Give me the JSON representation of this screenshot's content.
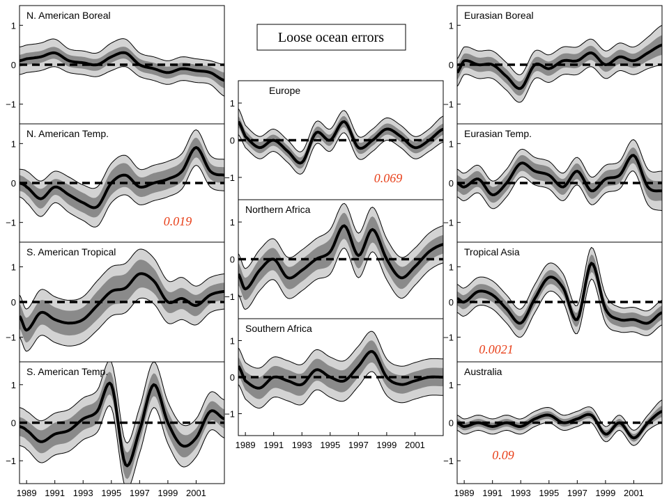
{
  "figure_title": "Loose ocean errors",
  "colors": {
    "outer_band": "#d3d3d3",
    "inner_band": "#8a8a8a",
    "mean_line": "#000000",
    "annotation": "#e8401a"
  },
  "chart_data": [
    {
      "type": "line",
      "title": "N. American Boreal",
      "annotation": "",
      "x": [
        1988.5,
        1989,
        1990,
        1991,
        1992,
        1993,
        1994,
        1995,
        1996,
        1997,
        1998,
        1999,
        2000,
        2001,
        2002,
        2003
      ],
      "series": [
        {
          "values": [
            0.1,
            0.15,
            0.2,
            0.3,
            0.1,
            0.05,
            0.0,
            0.2,
            0.3,
            0.0,
            -0.1,
            -0.2,
            -0.1,
            -0.15,
            -0.2,
            -0.4
          ]
        }
      ],
      "band_outer": [
        0.35,
        0.35,
        0.35,
        0.35,
        0.3,
        0.3,
        0.3,
        0.35,
        0.35,
        0.3,
        0.3,
        0.3,
        0.3,
        0.3,
        0.3,
        0.4
      ],
      "band_inner": [
        0.15,
        0.15,
        0.15,
        0.15,
        0.15,
        0.15,
        0.15,
        0.15,
        0.15,
        0.15,
        0.15,
        0.15,
        0.15,
        0.15,
        0.15,
        0.2
      ],
      "ylim": [
        -1.5,
        1.5
      ],
      "yticks": [
        -1,
        0,
        1
      ],
      "xticks": [],
      "grid": false
    },
    {
      "type": "line",
      "title": "N. American Temp.",
      "annotation": "0.019",
      "x": [
        1988.5,
        1989,
        1990,
        1991,
        1992,
        1993,
        1994,
        1995,
        1996,
        1997,
        1998,
        1999,
        2000,
        2001,
        2002,
        2003
      ],
      "series": [
        {
          "values": [
            0.0,
            -0.1,
            -0.4,
            -0.1,
            -0.3,
            -0.5,
            -0.6,
            0.0,
            0.2,
            -0.1,
            0.0,
            0.1,
            0.3,
            0.9,
            0.3,
            0.2
          ]
        }
      ],
      "band_outer": [
        0.35,
        0.4,
        0.45,
        0.4,
        0.45,
        0.45,
        0.5,
        0.5,
        0.5,
        0.45,
        0.45,
        0.45,
        0.45,
        0.45,
        0.4,
        0.4
      ],
      "band_inner": [
        0.2,
        0.2,
        0.25,
        0.2,
        0.25,
        0.25,
        0.25,
        0.3,
        0.3,
        0.25,
        0.25,
        0.25,
        0.25,
        0.25,
        0.2,
        0.2
      ],
      "ylim": [
        -1.5,
        1.5
      ],
      "yticks": [
        -1,
        0,
        1
      ],
      "xticks": [],
      "grid": false
    },
    {
      "type": "line",
      "title": "S. American Tropical",
      "annotation": "",
      "x": [
        1988.5,
        1989,
        1990,
        1991,
        1992,
        1993,
        1994,
        1995,
        1996,
        1997,
        1998,
        1999,
        2000,
        2001,
        2002,
        2003
      ],
      "series": [
        {
          "values": [
            -0.4,
            -0.8,
            -0.3,
            -0.5,
            -0.6,
            -0.5,
            -0.1,
            0.3,
            0.4,
            0.8,
            0.6,
            0.0,
            0.1,
            -0.1,
            0.2,
            0.3
          ]
        }
      ],
      "band_outer": [
        0.6,
        0.6,
        0.65,
        0.65,
        0.65,
        0.65,
        0.7,
        0.7,
        0.7,
        0.7,
        0.65,
        0.6,
        0.6,
        0.55,
        0.5,
        0.5
      ],
      "band_inner": [
        0.35,
        0.35,
        0.35,
        0.35,
        0.35,
        0.35,
        0.4,
        0.4,
        0.4,
        0.4,
        0.35,
        0.3,
        0.3,
        0.3,
        0.25,
        0.25
      ],
      "ylim": [
        -1.7,
        1.7
      ],
      "yticks": [
        -1,
        0,
        1
      ],
      "xticks": [],
      "grid": false
    },
    {
      "type": "line",
      "title": "S. American Temp.",
      "annotation": "",
      "x": [
        1988.5,
        1989,
        1990,
        1991,
        1992,
        1993,
        1994,
        1995,
        1996,
        1997,
        1998,
        1999,
        2000,
        2001,
        2002,
        2003
      ],
      "series": [
        {
          "values": [
            -0.1,
            -0.2,
            -0.5,
            -0.3,
            -0.2,
            0.1,
            0.3,
            1.0,
            -1.1,
            -0.2,
            1.0,
            0.0,
            -0.6,
            -0.4,
            0.3,
            0.1
          ]
        }
      ],
      "band_outer": [
        0.5,
        0.5,
        0.55,
        0.55,
        0.55,
        0.55,
        0.55,
        0.6,
        0.6,
        0.6,
        0.6,
        0.55,
        0.55,
        0.5,
        0.5,
        0.5
      ],
      "band_inner": [
        0.25,
        0.25,
        0.3,
        0.3,
        0.3,
        0.3,
        0.3,
        0.3,
        0.35,
        0.3,
        0.3,
        0.3,
        0.3,
        0.25,
        0.25,
        0.25
      ],
      "ylim": [
        -1.6,
        1.6
      ],
      "yticks": [
        -1,
        0,
        1
      ],
      "xticks": [
        1989,
        1991,
        1993,
        1995,
        1997,
        1999,
        2001
      ],
      "grid": false
    },
    {
      "type": "line",
      "title": "Europe",
      "annotation": "0.069",
      "x": [
        1988.5,
        1989,
        1990,
        1991,
        1992,
        1993,
        1994,
        1995,
        1996,
        1997,
        1998,
        1999,
        2000,
        2001,
        2002,
        2003
      ],
      "series": [
        {
          "values": [
            0.5,
            0.1,
            -0.2,
            0.0,
            -0.3,
            -0.6,
            0.2,
            0.0,
            0.5,
            -0.2,
            0.0,
            0.3,
            0.1,
            -0.2,
            0.0,
            0.3
          ]
        }
      ],
      "band_outer": [
        0.35,
        0.3,
        0.3,
        0.3,
        0.3,
        0.3,
        0.3,
        0.3,
        0.3,
        0.3,
        0.3,
        0.3,
        0.3,
        0.3,
        0.3,
        0.35
      ],
      "band_inner": [
        0.15,
        0.15,
        0.15,
        0.15,
        0.15,
        0.15,
        0.15,
        0.15,
        0.15,
        0.15,
        0.15,
        0.15,
        0.15,
        0.15,
        0.15,
        0.15
      ],
      "ylim": [
        -1.6,
        1.6
      ],
      "yticks": [
        -1,
        0,
        1
      ],
      "xticks": [],
      "grid": false
    },
    {
      "type": "line",
      "title": "Northern Africa",
      "annotation": "",
      "x": [
        1988.5,
        1989,
        1990,
        1991,
        1992,
        1993,
        1994,
        1995,
        1996,
        1997,
        1998,
        1999,
        2000,
        2001,
        2002,
        2003
      ],
      "series": [
        {
          "values": [
            -0.4,
            -0.8,
            -0.3,
            0.0,
            -0.5,
            -0.3,
            0.0,
            0.2,
            0.9,
            0.1,
            0.8,
            0.0,
            -0.5,
            -0.2,
            0.2,
            0.4
          ]
        }
      ],
      "band_outer": [
        0.55,
        0.55,
        0.55,
        0.55,
        0.55,
        0.55,
        0.55,
        0.6,
        0.6,
        0.6,
        0.6,
        0.55,
        0.55,
        0.5,
        0.5,
        0.5
      ],
      "band_inner": [
        0.3,
        0.3,
        0.3,
        0.3,
        0.3,
        0.3,
        0.3,
        0.35,
        0.35,
        0.35,
        0.35,
        0.3,
        0.3,
        0.25,
        0.25,
        0.25
      ],
      "ylim": [
        -1.6,
        1.6
      ],
      "yticks": [
        -1,
        0,
        1
      ],
      "xticks": [],
      "grid": false
    },
    {
      "type": "line",
      "title": "Southern Africa",
      "annotation": "",
      "x": [
        1988.5,
        1989,
        1990,
        1991,
        1992,
        1993,
        1994,
        1995,
        1996,
        1997,
        1998,
        1999,
        2000,
        2001,
        2002,
        2003
      ],
      "series": [
        {
          "values": [
            0.3,
            -0.1,
            -0.3,
            0.0,
            -0.1,
            -0.2,
            0.2,
            0.0,
            -0.1,
            0.3,
            0.7,
            0.0,
            -0.2,
            -0.1,
            0.0,
            0.0
          ]
        }
      ],
      "band_outer": [
        0.5,
        0.5,
        0.55,
        0.55,
        0.55,
        0.55,
        0.55,
        0.55,
        0.55,
        0.55,
        0.55,
        0.5,
        0.5,
        0.5,
        0.5,
        0.5
      ],
      "band_inner": [
        0.25,
        0.25,
        0.3,
        0.3,
        0.3,
        0.3,
        0.3,
        0.3,
        0.3,
        0.3,
        0.3,
        0.25,
        0.25,
        0.25,
        0.25,
        0.25
      ],
      "ylim": [
        -1.6,
        1.6
      ],
      "yticks": [
        -1,
        0,
        1
      ],
      "xticks": [
        1989,
        1991,
        1993,
        1995,
        1997,
        1999,
        2001
      ],
      "grid": false
    },
    {
      "type": "line",
      "title": "Eurasian Boreal",
      "annotation": "",
      "x": [
        1988.5,
        1989,
        1990,
        1991,
        1992,
        1993,
        1994,
        1995,
        1996,
        1997,
        1998,
        1999,
        2000,
        2001,
        2002,
        2003
      ],
      "series": [
        {
          "values": [
            -0.2,
            0.1,
            0.0,
            0.0,
            -0.3,
            -0.6,
            0.0,
            -0.1,
            0.1,
            0.1,
            0.3,
            0.0,
            0.2,
            0.1,
            0.3,
            0.5
          ]
        }
      ],
      "band_outer": [
        0.35,
        0.35,
        0.35,
        0.35,
        0.35,
        0.35,
        0.35,
        0.35,
        0.35,
        0.35,
        0.35,
        0.35,
        0.35,
        0.35,
        0.4,
        0.5
      ],
      "band_inner": [
        0.18,
        0.18,
        0.18,
        0.18,
        0.18,
        0.18,
        0.18,
        0.18,
        0.18,
        0.18,
        0.18,
        0.18,
        0.18,
        0.18,
        0.2,
        0.25
      ],
      "ylim": [
        -1.5,
        1.5
      ],
      "yticks": [
        -1,
        0,
        1
      ],
      "xticks": [],
      "grid": false
    },
    {
      "type": "line",
      "title": "Eurasian Temp.",
      "annotation": "",
      "x": [
        1988.5,
        1989,
        1990,
        1991,
        1992,
        1993,
        1994,
        1995,
        1996,
        1997,
        1998,
        1999,
        2000,
        2001,
        2002,
        2003
      ],
      "series": [
        {
          "values": [
            0.0,
            -0.1,
            0.1,
            -0.3,
            0.0,
            0.5,
            0.3,
            0.2,
            -0.1,
            0.3,
            -0.2,
            0.1,
            0.2,
            0.7,
            -0.1,
            -0.2
          ]
        }
      ],
      "band_outer": [
        0.35,
        0.35,
        0.35,
        0.35,
        0.35,
        0.35,
        0.35,
        0.35,
        0.35,
        0.35,
        0.35,
        0.35,
        0.35,
        0.4,
        0.45,
        0.5
      ],
      "band_inner": [
        0.2,
        0.2,
        0.2,
        0.2,
        0.2,
        0.2,
        0.2,
        0.2,
        0.2,
        0.2,
        0.2,
        0.2,
        0.2,
        0.2,
        0.25,
        0.25
      ],
      "ylim": [
        -1.5,
        1.5
      ],
      "yticks": [
        -1,
        0,
        1
      ],
      "xticks": [],
      "grid": false
    },
    {
      "type": "line",
      "title": "Tropical Asia",
      "annotation": "0.0021",
      "x": [
        1988.5,
        1989,
        1990,
        1991,
        1992,
        1993,
        1994,
        1995,
        1996,
        1997,
        1998,
        1999,
        2000,
        2001,
        2002,
        2003
      ],
      "series": [
        {
          "values": [
            0.1,
            0.0,
            0.3,
            0.2,
            -0.2,
            -0.6,
            0.1,
            0.7,
            0.4,
            -0.5,
            1.1,
            -0.2,
            -0.5,
            -0.5,
            -0.6,
            -0.3
          ]
        }
      ],
      "band_outer": [
        0.4,
        0.4,
        0.4,
        0.4,
        0.4,
        0.4,
        0.4,
        0.4,
        0.4,
        0.4,
        0.45,
        0.4,
        0.35,
        0.35,
        0.35,
        0.35
      ],
      "band_inner": [
        0.2,
        0.2,
        0.2,
        0.2,
        0.2,
        0.2,
        0.2,
        0.2,
        0.2,
        0.2,
        0.25,
        0.2,
        0.2,
        0.2,
        0.2,
        0.2
      ],
      "ylim": [
        -1.7,
        1.7
      ],
      "yticks": [
        -1,
        0,
        1
      ],
      "xticks": [],
      "grid": false
    },
    {
      "type": "line",
      "title": "Australia",
      "annotation": "0.09",
      "x": [
        1988.5,
        1989,
        1990,
        1991,
        1992,
        1993,
        1994,
        1995,
        1996,
        1997,
        1998,
        1999,
        2000,
        2001,
        2002,
        2003
      ],
      "series": [
        {
          "values": [
            0.0,
            -0.1,
            0.0,
            -0.1,
            0.0,
            -0.1,
            0.1,
            0.2,
            0.0,
            0.1,
            0.2,
            -0.3,
            0.0,
            -0.4,
            0.0,
            0.3
          ]
        }
      ],
      "band_outer": [
        0.2,
        0.2,
        0.2,
        0.2,
        0.2,
        0.2,
        0.2,
        0.2,
        0.2,
        0.2,
        0.2,
        0.2,
        0.2,
        0.2,
        0.2,
        0.3
      ],
      "band_inner": [
        0.1,
        0.1,
        0.1,
        0.1,
        0.1,
        0.1,
        0.1,
        0.1,
        0.1,
        0.1,
        0.1,
        0.1,
        0.1,
        0.1,
        0.1,
        0.15
      ],
      "ylim": [
        -1.6,
        1.6
      ],
      "yticks": [
        -1,
        0,
        1
      ],
      "xticks": [
        1989,
        1991,
        1993,
        1995,
        1997,
        1999,
        2001
      ],
      "grid": false
    }
  ]
}
